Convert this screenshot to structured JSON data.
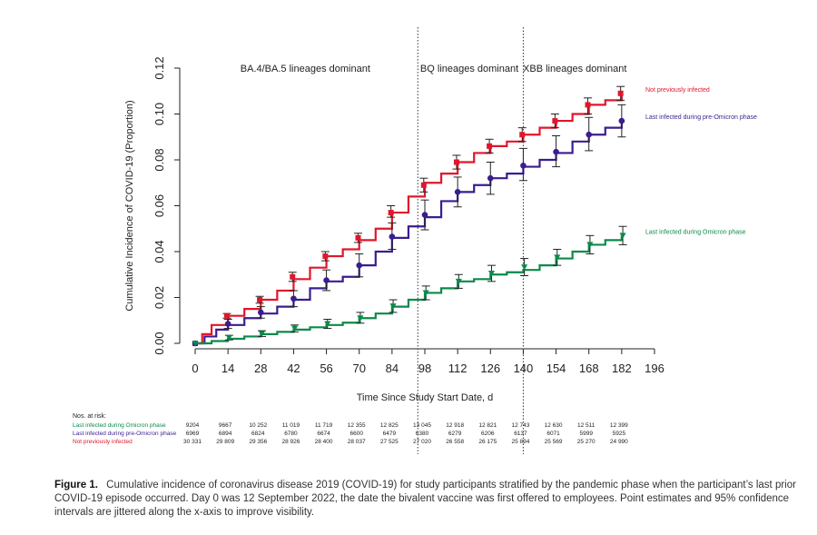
{
  "chart_data": {
    "type": "line",
    "ylabel": "Cumulative Incidence of COVID-19 (Proportion)",
    "xlabel": "Time Since Study Start Date, d",
    "xlim": [
      0,
      196
    ],
    "ylim": [
      0,
      0.12
    ],
    "x_ticks": [
      0,
      14,
      28,
      42,
      56,
      70,
      84,
      98,
      112,
      126,
      140,
      154,
      168,
      182,
      196
    ],
    "y_ticks": [
      0.0,
      0.02,
      0.04,
      0.06,
      0.08,
      0.1,
      0.12
    ],
    "y_tick_labels": [
      "0.00",
      "0.02",
      "0.04",
      "0.06",
      "0.08",
      "0.10",
      "0.12"
    ],
    "vlines": [
      95,
      140
    ],
    "phase_labels": [
      {
        "text": "BA.4/BA.5 lineages dominant",
        "x_center": 47
      },
      {
        "text": "BQ lineages dominant",
        "x_center": 117
      },
      {
        "text": "XBB lineages dominant",
        "x_center": 162
      }
    ],
    "series": [
      {
        "name": "Not previously infected",
        "color": "#e0162b",
        "marker": "square",
        "curve": [
          [
            0,
            0
          ],
          [
            3,
            0.004
          ],
          [
            7,
            0.008
          ],
          [
            14,
            0.012
          ],
          [
            21,
            0.015
          ],
          [
            28,
            0.019
          ],
          [
            35,
            0.023
          ],
          [
            42,
            0.028
          ],
          [
            49,
            0.033
          ],
          [
            56,
            0.038
          ],
          [
            63,
            0.041
          ],
          [
            70,
            0.045
          ],
          [
            77,
            0.05
          ],
          [
            84,
            0.057
          ],
          [
            91,
            0.064
          ],
          [
            98,
            0.07
          ],
          [
            105,
            0.074
          ],
          [
            112,
            0.079
          ],
          [
            119,
            0.083
          ],
          [
            126,
            0.086
          ],
          [
            133,
            0.088
          ],
          [
            140,
            0.091
          ],
          [
            147,
            0.094
          ],
          [
            154,
            0.097
          ],
          [
            161,
            0.1
          ],
          [
            168,
            0.104
          ],
          [
            175,
            0.106
          ],
          [
            182,
            0.109
          ]
        ],
        "points": [
          {
            "x": 0,
            "y": 0.0,
            "lo": 0.0,
            "hi": 0.0
          },
          {
            "x": 14,
            "y": 0.012,
            "lo": 0.011,
            "hi": 0.013
          },
          {
            "x": 28,
            "y": 0.019,
            "lo": 0.0175,
            "hi": 0.0205
          },
          {
            "x": 42,
            "y": 0.029,
            "lo": 0.027,
            "hi": 0.031
          },
          {
            "x": 56,
            "y": 0.038,
            "lo": 0.036,
            "hi": 0.04
          },
          {
            "x": 70,
            "y": 0.046,
            "lo": 0.044,
            "hi": 0.048
          },
          {
            "x": 84,
            "y": 0.057,
            "lo": 0.055,
            "hi": 0.06
          },
          {
            "x": 98,
            "y": 0.069,
            "lo": 0.066,
            "hi": 0.072
          },
          {
            "x": 112,
            "y": 0.079,
            "lo": 0.076,
            "hi": 0.082
          },
          {
            "x": 126,
            "y": 0.086,
            "lo": 0.083,
            "hi": 0.089
          },
          {
            "x": 140,
            "y": 0.091,
            "lo": 0.088,
            "hi": 0.094
          },
          {
            "x": 154,
            "y": 0.097,
            "lo": 0.094,
            "hi": 0.1
          },
          {
            "x": 168,
            "y": 0.104,
            "lo": 0.1,
            "hi": 0.107
          },
          {
            "x": 182,
            "y": 0.109,
            "lo": 0.106,
            "hi": 0.112
          }
        ]
      },
      {
        "name": "Last infected during pre-Omicron phase",
        "color": "#3a1d8f",
        "marker": "circle",
        "curve": [
          [
            0,
            0
          ],
          [
            4,
            0.003
          ],
          [
            9,
            0.006
          ],
          [
            14,
            0.008
          ],
          [
            21,
            0.011
          ],
          [
            28,
            0.013
          ],
          [
            35,
            0.016
          ],
          [
            42,
            0.019
          ],
          [
            49,
            0.024
          ],
          [
            56,
            0.027
          ],
          [
            63,
            0.029
          ],
          [
            70,
            0.034
          ],
          [
            77,
            0.04
          ],
          [
            84,
            0.046
          ],
          [
            91,
            0.051
          ],
          [
            98,
            0.055
          ],
          [
            105,
            0.062
          ],
          [
            112,
            0.066
          ],
          [
            119,
            0.069
          ],
          [
            126,
            0.072
          ],
          [
            133,
            0.074
          ],
          [
            140,
            0.077
          ],
          [
            147,
            0.08
          ],
          [
            154,
            0.083
          ],
          [
            161,
            0.088
          ],
          [
            168,
            0.091
          ],
          [
            175,
            0.094
          ],
          [
            182,
            0.097
          ]
        ],
        "points": [
          {
            "x": 0,
            "y": 0.0,
            "lo": 0.0,
            "hi": 0.0
          },
          {
            "x": 14,
            "y": 0.0085,
            "lo": 0.0065,
            "hi": 0.0105
          },
          {
            "x": 28,
            "y": 0.0135,
            "lo": 0.011,
            "hi": 0.016
          },
          {
            "x": 42,
            "y": 0.0195,
            "lo": 0.016,
            "hi": 0.023
          },
          {
            "x": 56,
            "y": 0.0275,
            "lo": 0.023,
            "hi": 0.032
          },
          {
            "x": 70,
            "y": 0.034,
            "lo": 0.029,
            "hi": 0.039
          },
          {
            "x": 84,
            "y": 0.0465,
            "lo": 0.041,
            "hi": 0.0525
          },
          {
            "x": 98,
            "y": 0.056,
            "lo": 0.0495,
            "hi": 0.0625
          },
          {
            "x": 112,
            "y": 0.066,
            "lo": 0.0595,
            "hi": 0.0725
          },
          {
            "x": 126,
            "y": 0.072,
            "lo": 0.065,
            "hi": 0.079
          },
          {
            "x": 140,
            "y": 0.0775,
            "lo": 0.071,
            "hi": 0.085
          },
          {
            "x": 154,
            "y": 0.0835,
            "lo": 0.077,
            "hi": 0.0905
          },
          {
            "x": 168,
            "y": 0.091,
            "lo": 0.084,
            "hi": 0.0985
          },
          {
            "x": 182,
            "y": 0.097,
            "lo": 0.09,
            "hi": 0.104
          }
        ]
      },
      {
        "name": "Last infected during Omicron phase",
        "color": "#0b8a4a",
        "marker": "triangle-down",
        "curve": [
          [
            0,
            0
          ],
          [
            7,
            0.001
          ],
          [
            14,
            0.002
          ],
          [
            21,
            0.003
          ],
          [
            28,
            0.004
          ],
          [
            35,
            0.005
          ],
          [
            42,
            0.006
          ],
          [
            49,
            0.007
          ],
          [
            56,
            0.008
          ],
          [
            63,
            0.009
          ],
          [
            70,
            0.011
          ],
          [
            77,
            0.013
          ],
          [
            84,
            0.016
          ],
          [
            91,
            0.019
          ],
          [
            98,
            0.022
          ],
          [
            105,
            0.024
          ],
          [
            112,
            0.027
          ],
          [
            119,
            0.028
          ],
          [
            126,
            0.03
          ],
          [
            133,
            0.031
          ],
          [
            140,
            0.032
          ],
          [
            147,
            0.034
          ],
          [
            154,
            0.037
          ],
          [
            161,
            0.04
          ],
          [
            168,
            0.043
          ],
          [
            175,
            0.045
          ],
          [
            182,
            0.047
          ]
        ],
        "points": [
          {
            "x": 0,
            "y": 0.0,
            "lo": 0.0,
            "hi": 0.0
          },
          {
            "x": 14,
            "y": 0.0025,
            "lo": 0.0015,
            "hi": 0.0035
          },
          {
            "x": 28,
            "y": 0.0042,
            "lo": 0.003,
            "hi": 0.0055
          },
          {
            "x": 42,
            "y": 0.0065,
            "lo": 0.005,
            "hi": 0.008
          },
          {
            "x": 56,
            "y": 0.0085,
            "lo": 0.0065,
            "hi": 0.0105
          },
          {
            "x": 70,
            "y": 0.011,
            "lo": 0.0088,
            "hi": 0.0135
          },
          {
            "x": 84,
            "y": 0.0162,
            "lo": 0.0135,
            "hi": 0.019
          },
          {
            "x": 98,
            "y": 0.022,
            "lo": 0.019,
            "hi": 0.025
          },
          {
            "x": 112,
            "y": 0.027,
            "lo": 0.024,
            "hi": 0.03
          },
          {
            "x": 126,
            "y": 0.0305,
            "lo": 0.027,
            "hi": 0.034
          },
          {
            "x": 140,
            "y": 0.0332,
            "lo": 0.0295,
            "hi": 0.037
          },
          {
            "x": 154,
            "y": 0.0375,
            "lo": 0.034,
            "hi": 0.041
          },
          {
            "x": 168,
            "y": 0.043,
            "lo": 0.039,
            "hi": 0.047
          },
          {
            "x": 182,
            "y": 0.047,
            "lo": 0.043,
            "hi": 0.051
          }
        ]
      }
    ],
    "series_labels": [
      {
        "text": "Not previously infected",
        "series": 0
      },
      {
        "text": "Last infected during pre-Omicron phase",
        "series": 1
      },
      {
        "text": "Last infected during Omicron phase",
        "series": 2
      }
    ],
    "risk_table": {
      "title": "Nos. at risk:",
      "rows": [
        {
          "label": "Last infected during Omicron phase",
          "color": "#0b8a4a",
          "values": [
            "9204",
            "9667",
            "10 252",
            "11 019",
            "11 719",
            "12 355",
            "12 825",
            "13 045",
            "12 918",
            "12 821",
            "12 743",
            "12 630",
            "12 511",
            "12 399"
          ]
        },
        {
          "label": "Last infected during pre-Omicron phase",
          "color": "#3a1d8f",
          "values": [
            "6969",
            "6894",
            "6824",
            "6780",
            "6674",
            "6600",
            "6479",
            "6380",
            "6279",
            "6206",
            "6137",
            "6071",
            "5999",
            "5925"
          ]
        },
        {
          "label": "Not previously infected",
          "color": "#e0162b",
          "values": [
            "30 331",
            "29 809",
            "29 356",
            "28 926",
            "28 400",
            "28 037",
            "27 525",
            "27 020",
            "26 558",
            "26 175",
            "25 894",
            "25 569",
            "25 270",
            "24 990"
          ]
        }
      ]
    }
  },
  "caption": {
    "label": "Figure 1.",
    "text": "Cumulative incidence of coronavirus disease 2019 (COVID-19) for study participants stratified by the pandemic phase when the participant’s last prior COVID-19 episode occurred. Day 0 was 12 September 2022, the date the bivalent vaccine was first offered to employees. Point estimates and 95% confidence intervals are jittered along the x-axis to improve visibility."
  }
}
